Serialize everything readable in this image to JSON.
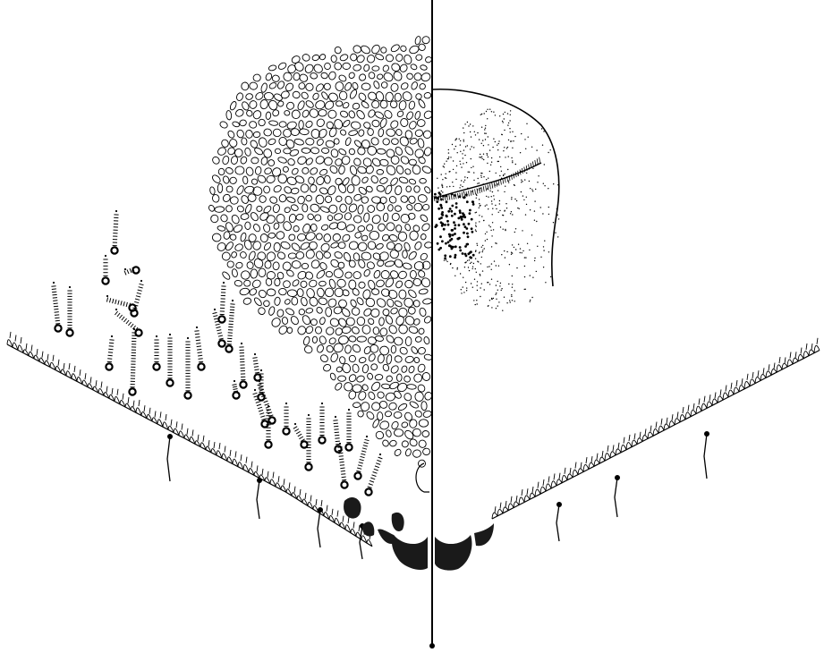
{
  "figure": {
    "ink_color": "#000000",
    "paper_color": "#ffffff",
    "layers": {
      "left_half": "reticulate-cell-pattern",
      "right_half": "stippled-outline",
      "bottom_margin": "fringed-setae-edge",
      "dark_lobes": "solid-black-pads"
    }
  }
}
